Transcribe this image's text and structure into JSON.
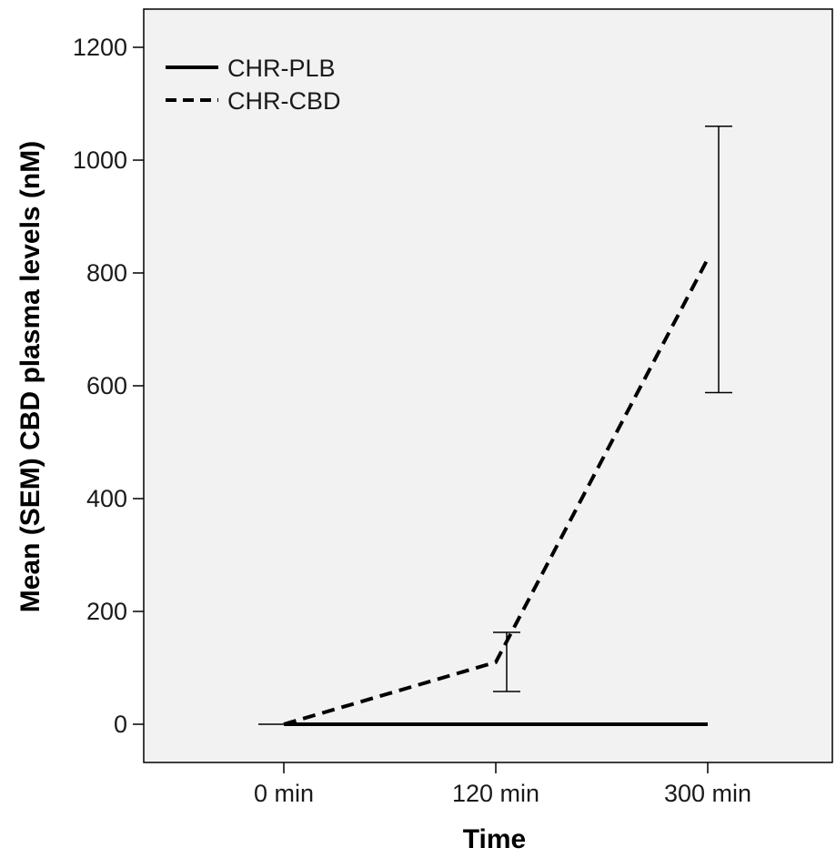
{
  "chart_data": {
    "type": "line",
    "title": "",
    "xlabel": "Time",
    "ylabel": "Mean (SEM) CBD plasma levels (nM)",
    "categories": [
      "0 min",
      "120 min",
      "300 min"
    ],
    "ylim": [
      -60,
      1260
    ],
    "yticks": [
      0,
      200,
      400,
      600,
      800,
      1000,
      1200
    ],
    "grid": false,
    "legend_position": "top-left",
    "series": [
      {
        "name": "CHR-PLB",
        "style": "solid",
        "color": "#000000",
        "values": [
          0,
          0,
          0
        ],
        "error_lower": [
          0,
          0,
          0
        ],
        "error_upper": [
          0,
          0,
          0
        ]
      },
      {
        "name": "CHR-CBD",
        "style": "dashed",
        "color": "#000000",
        "values": [
          0,
          110,
          825
        ],
        "error_lower": [
          0,
          58,
          588
        ],
        "error_upper": [
          0,
          163,
          1060
        ]
      }
    ],
    "colors": {
      "plot_background": "#f2f2f2",
      "axis": "#000000"
    }
  }
}
